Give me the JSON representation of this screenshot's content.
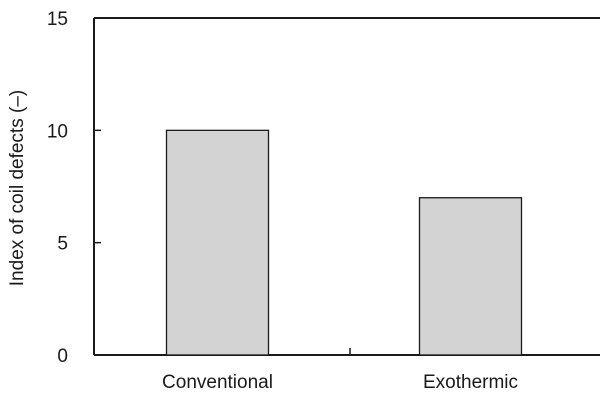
{
  "chart_data": {
    "type": "bar",
    "categories": [
      "Conventional",
      "Exothermic"
    ],
    "values": [
      10,
      7
    ],
    "title": "",
    "xlabel": "",
    "ylabel": "Index of coil defects (–)",
    "ylim": [
      0,
      15
    ],
    "yticks": [
      0,
      5,
      10,
      15
    ],
    "grid": false,
    "legend": "none",
    "colors": {
      "bar_fill": "#d3d3d3",
      "bar_stroke": "#1a1a1a",
      "axis": "#1a1a1a"
    }
  }
}
